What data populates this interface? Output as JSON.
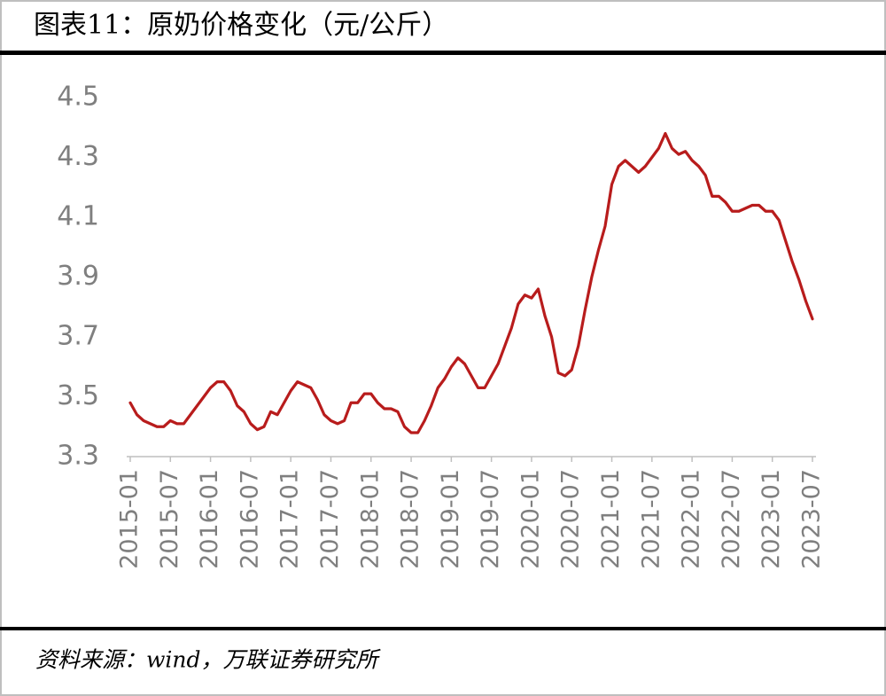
{
  "chart_data": {
    "type": "line",
    "title": "图表11：原奶价格变化（元/公斤）",
    "source": "资料来源：wind，万联证券研究所",
    "categories": [
      "2015-01",
      null,
      null,
      null,
      null,
      null,
      "2015-07",
      null,
      null,
      null,
      null,
      null,
      "2016-01",
      null,
      null,
      null,
      null,
      null,
      "2016-07",
      null,
      null,
      null,
      null,
      null,
      "2017-01",
      null,
      null,
      null,
      null,
      null,
      "2017-07",
      null,
      null,
      null,
      null,
      null,
      "2018-01",
      null,
      null,
      null,
      null,
      null,
      "2018-07",
      null,
      null,
      null,
      null,
      null,
      "2019-01",
      null,
      null,
      null,
      null,
      null,
      "2019-07",
      null,
      null,
      null,
      null,
      null,
      "2020-01",
      null,
      null,
      null,
      null,
      null,
      "2020-07",
      null,
      null,
      null,
      null,
      null,
      "2021-01",
      null,
      null,
      null,
      null,
      null,
      "2021-07",
      null,
      null,
      null,
      null,
      null,
      "2022-01",
      null,
      null,
      null,
      null,
      null,
      "2022-07",
      null,
      null,
      null,
      null,
      null,
      "2023-01",
      null,
      null,
      null,
      null,
      null,
      "2023-07"
    ],
    "series": [
      {
        "color": "#b81c1c",
        "values": [
          3.48,
          3.44,
          3.42,
          3.41,
          3.4,
          3.4,
          3.42,
          3.41,
          3.41,
          3.44,
          3.47,
          3.5,
          3.53,
          3.55,
          3.55,
          3.52,
          3.47,
          3.45,
          3.41,
          3.39,
          3.4,
          3.45,
          3.44,
          3.48,
          3.52,
          3.55,
          3.54,
          3.53,
          3.49,
          3.44,
          3.42,
          3.41,
          3.42,
          3.48,
          3.48,
          3.51,
          3.51,
          3.48,
          3.46,
          3.46,
          3.45,
          3.4,
          3.38,
          3.38,
          3.42,
          3.47,
          3.53,
          3.56,
          3.6,
          3.63,
          3.61,
          3.57,
          3.53,
          3.53,
          3.57,
          3.61,
          3.67,
          3.73,
          3.81,
          3.84,
          3.83,
          3.86,
          3.77,
          3.7,
          3.58,
          3.57,
          3.59,
          3.67,
          3.79,
          3.9,
          3.99,
          4.07,
          4.21,
          4.27,
          4.29,
          4.27,
          4.25,
          4.27,
          4.3,
          4.33,
          4.38,
          4.33,
          4.31,
          4.32,
          4.29,
          4.27,
          4.24,
          4.17,
          4.17,
          4.15,
          4.12,
          4.12,
          4.13,
          4.14,
          4.14,
          4.12,
          4.12,
          4.09,
          4.02,
          3.95,
          3.89,
          3.82,
          3.76
        ]
      }
    ],
    "ylim": [
      3.3,
      4.5
    ],
    "yticks": [
      3.3,
      3.5,
      3.7,
      3.9,
      4.1,
      4.3,
      4.5
    ],
    "grid": false
  }
}
